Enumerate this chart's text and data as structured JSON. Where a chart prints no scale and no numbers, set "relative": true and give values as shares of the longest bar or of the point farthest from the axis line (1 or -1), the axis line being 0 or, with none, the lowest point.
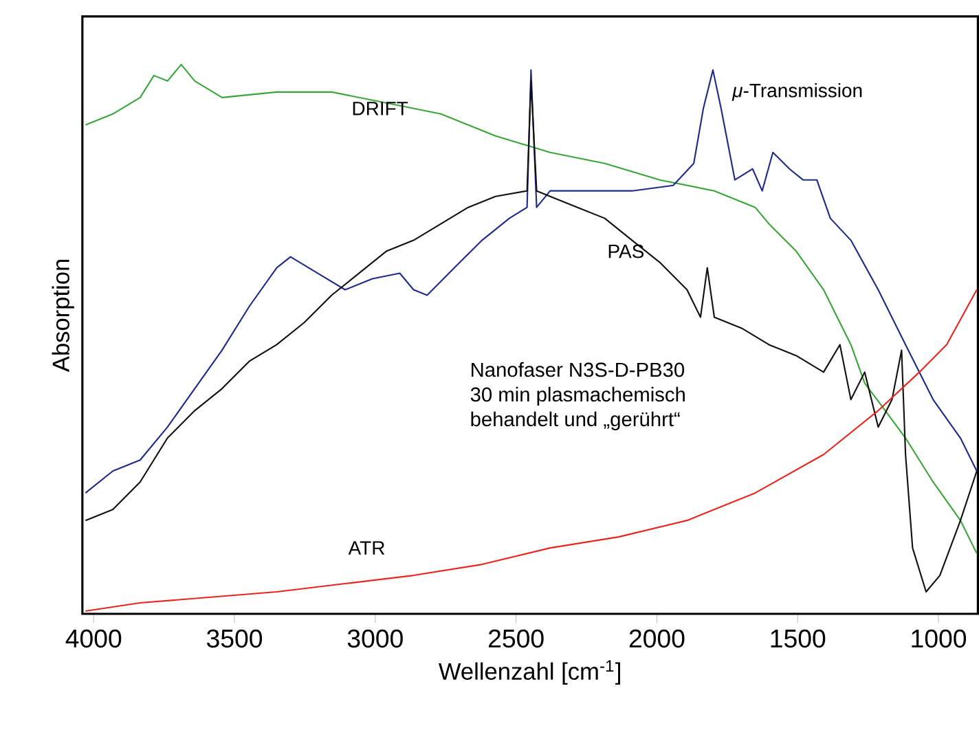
{
  "chart_data": {
    "type": "line",
    "relative": true,
    "xlabel": "Wellenzahl [cm$^{-1}$]",
    "ylabel": "Absorption",
    "xlim": [
      4040,
      860
    ],
    "xticks": [
      4000,
      3500,
      3000,
      2500,
      2000,
      1500,
      1000
    ],
    "annotations": [
      "Nanofaser N3S-D-PB30",
      "30 min plasmachemisch",
      "behandelt und „gerührt“"
    ],
    "series": [
      {
        "name": "DRIFT",
        "color": "#3aa63a",
        "x": [
          4029,
          3932,
          3835,
          3786,
          3738,
          3689,
          3641,
          3544,
          3350,
          3155,
          2961,
          2767,
          2573,
          2379,
          2185,
          1990,
          1796,
          1651,
          1602,
          1505,
          1408,
          1311,
          1262,
          1189,
          1117,
          1019,
          922,
          864
        ],
        "values": [
          0.89,
          0.91,
          0.94,
          0.98,
          0.97,
          1.0,
          0.97,
          0.94,
          0.95,
          0.95,
          0.93,
          0.91,
          0.87,
          0.84,
          0.82,
          0.79,
          0.77,
          0.74,
          0.71,
          0.66,
          0.59,
          0.49,
          0.42,
          0.37,
          0.32,
          0.24,
          0.17,
          0.11
        ]
      },
      {
        "name": "*μ*-Transmission",
        "color": "#1f2a8c",
        "x": [
          4029,
          3932,
          3835,
          3738,
          3641,
          3544,
          3447,
          3350,
          3301,
          3204,
          3107,
          3010,
          2913,
          2864,
          2816,
          2719,
          2621,
          2524,
          2461,
          2447,
          2427,
          2379,
          2282,
          2088,
          1942,
          1869,
          1835,
          1801,
          1772,
          1723,
          1660,
          1626,
          1588,
          1529,
          1481,
          1432,
          1384,
          1311,
          1214,
          1117,
          1019,
          922,
          864
        ],
        "values": [
          0.22,
          0.26,
          0.28,
          0.34,
          0.41,
          0.48,
          0.56,
          0.63,
          0.65,
          0.62,
          0.59,
          0.61,
          0.62,
          0.59,
          0.58,
          0.63,
          0.68,
          0.72,
          0.74,
          0.99,
          0.74,
          0.77,
          0.77,
          0.77,
          0.78,
          0.82,
          0.92,
          0.99,
          0.92,
          0.79,
          0.81,
          0.77,
          0.84,
          0.81,
          0.79,
          0.79,
          0.72,
          0.68,
          0.59,
          0.49,
          0.39,
          0.32,
          0.26
        ]
      },
      {
        "name": "PAS",
        "color": "#111111",
        "x": [
          4029,
          3932,
          3835,
          3738,
          3641,
          3544,
          3447,
          3350,
          3253,
          3155,
          3058,
          2961,
          2864,
          2767,
          2670,
          2573,
          2461,
          2447,
          2427,
          2379,
          2282,
          2185,
          2088,
          1990,
          1893,
          1845,
          1821,
          1796,
          1699,
          1602,
          1505,
          1408,
          1350,
          1311,
          1262,
          1214,
          1165,
          1131,
          1117,
          1092,
          1044,
          995,
          922,
          864
        ],
        "values": [
          0.17,
          0.19,
          0.24,
          0.32,
          0.37,
          0.41,
          0.46,
          0.49,
          0.53,
          0.58,
          0.62,
          0.66,
          0.68,
          0.71,
          0.74,
          0.76,
          0.77,
          0.97,
          0.77,
          0.76,
          0.74,
          0.72,
          0.68,
          0.64,
          0.59,
          0.54,
          0.63,
          0.54,
          0.52,
          0.49,
          0.47,
          0.44,
          0.49,
          0.39,
          0.44,
          0.34,
          0.39,
          0.48,
          0.29,
          0.12,
          0.04,
          0.07,
          0.17,
          0.26
        ]
      },
      {
        "name": "ATR",
        "color": "#e8261e",
        "x": [
          4029,
          3835,
          3592,
          3350,
          3107,
          2864,
          2621,
          2379,
          2136,
          1893,
          1651,
          1408,
          1214,
          1068,
          971,
          864
        ],
        "values": [
          0.005,
          0.02,
          0.03,
          0.04,
          0.055,
          0.07,
          0.09,
          0.12,
          0.14,
          0.17,
          0.22,
          0.29,
          0.37,
          0.44,
          0.49,
          0.59
        ]
      }
    ]
  }
}
